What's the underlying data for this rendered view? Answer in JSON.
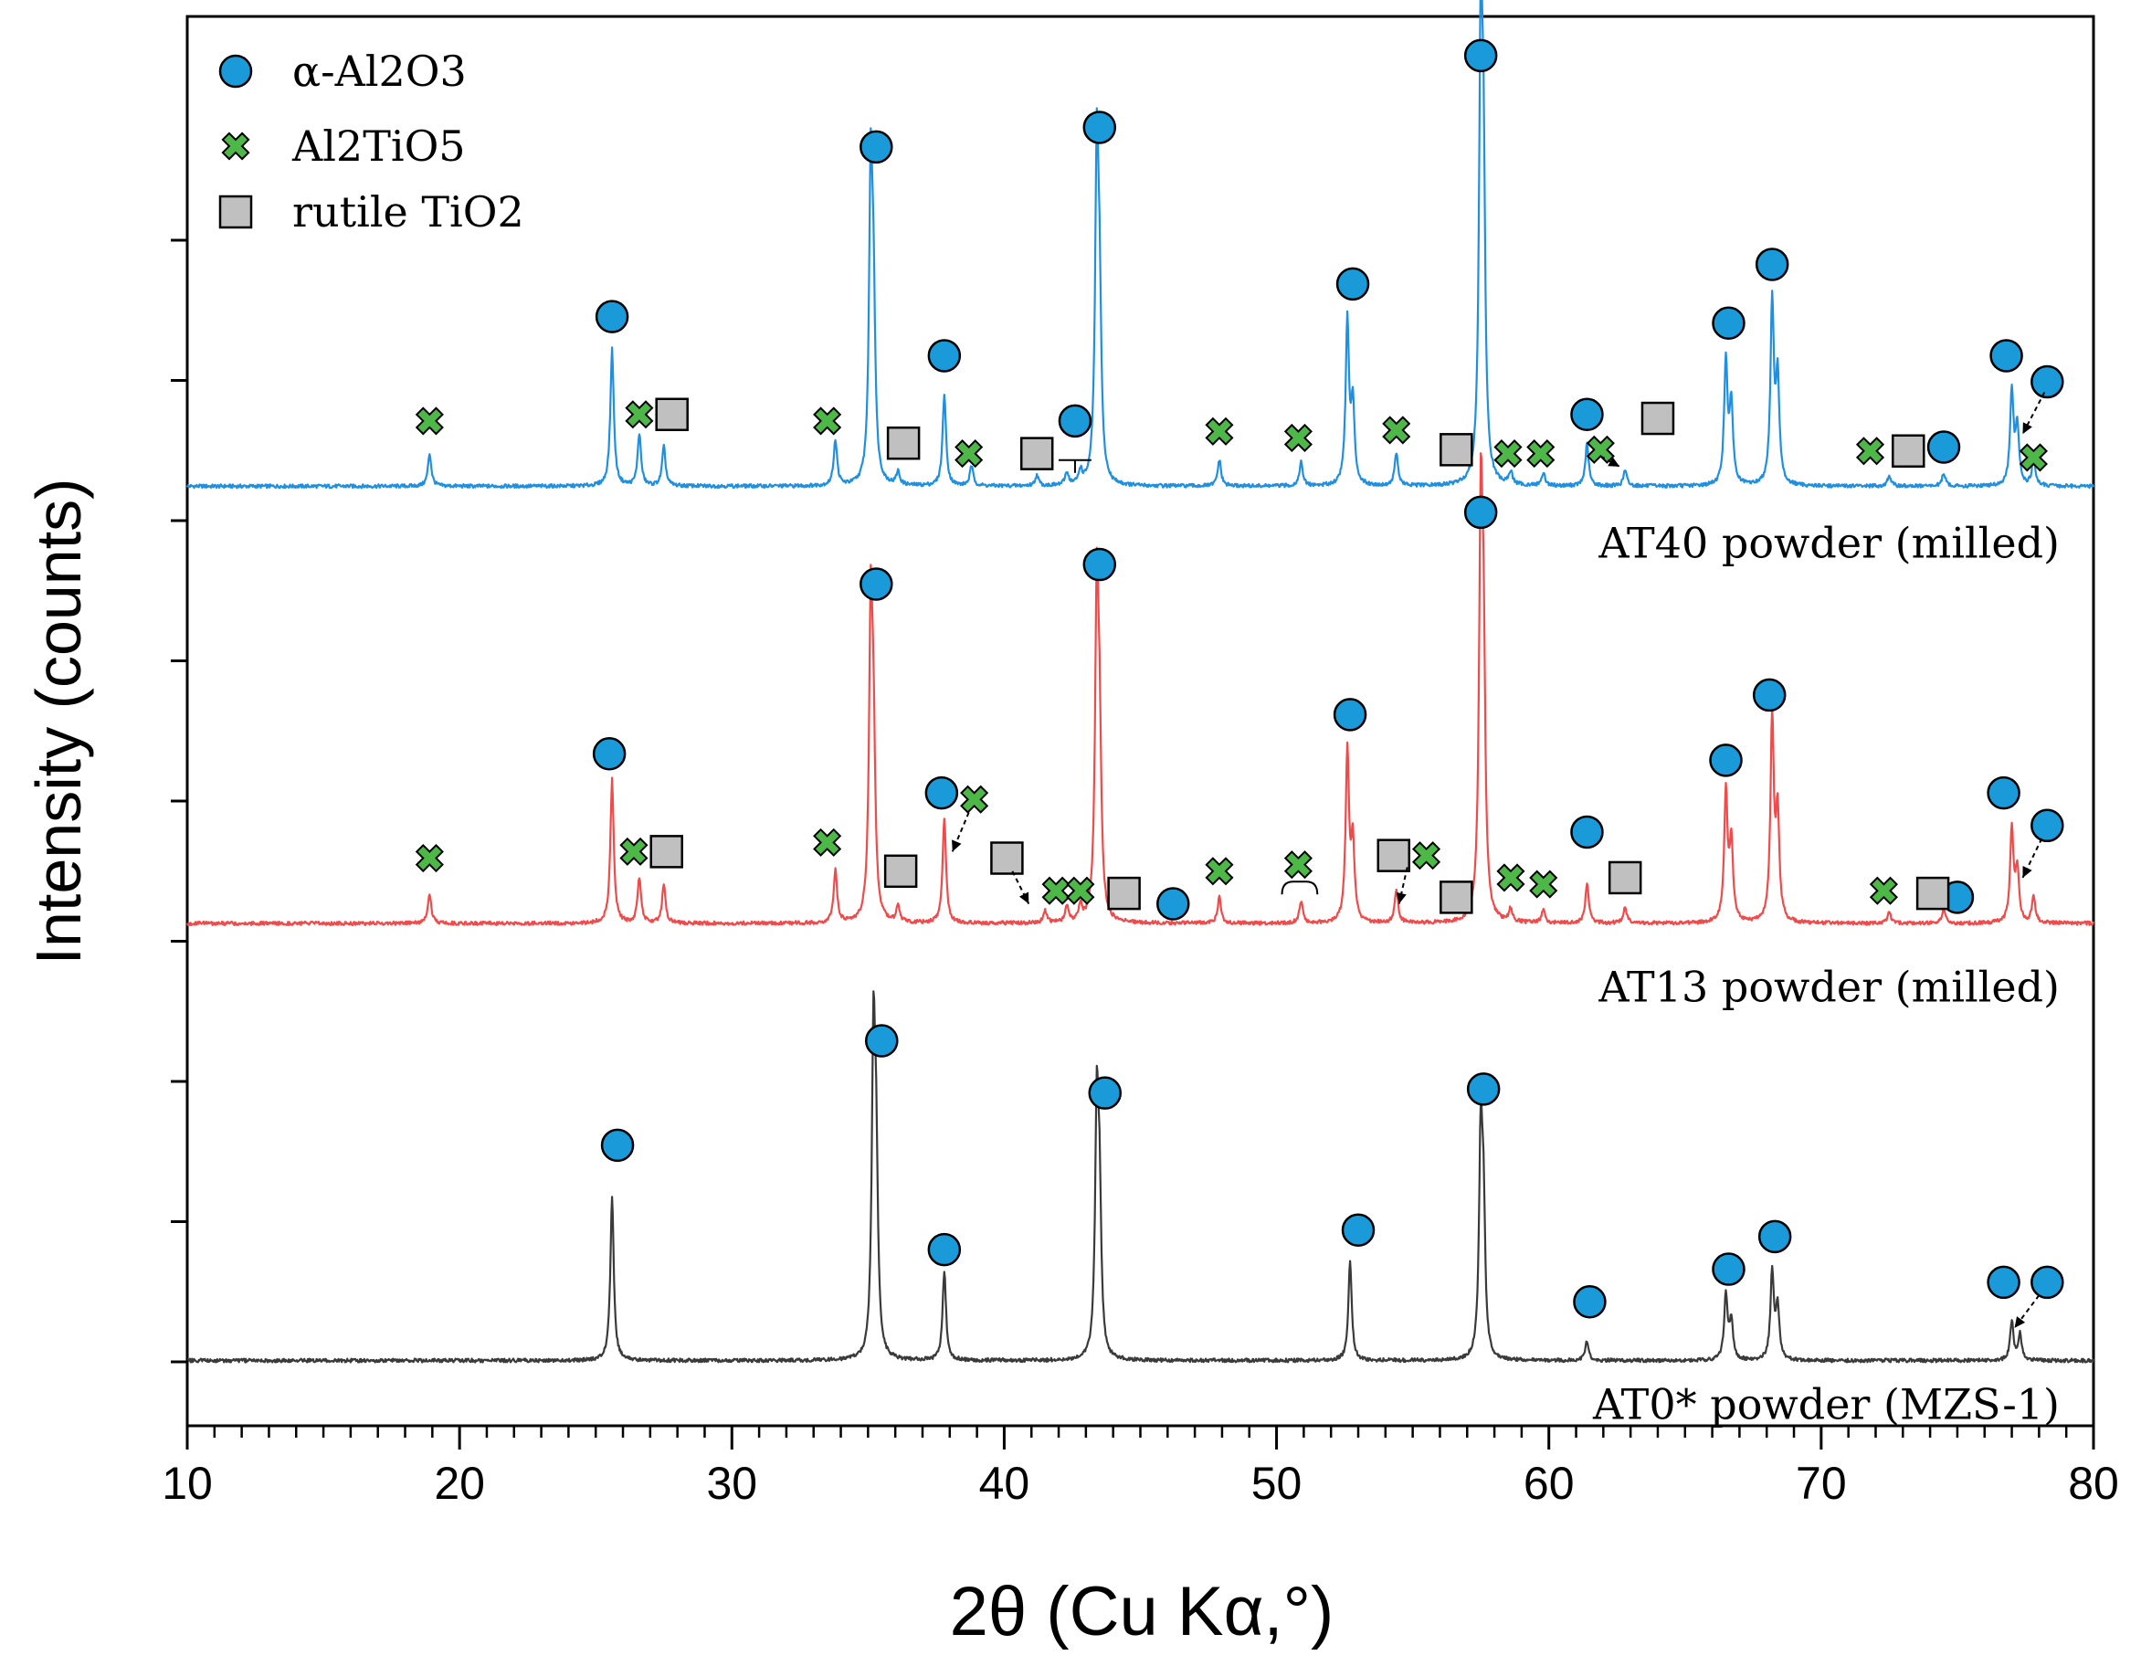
{
  "chart_data": {
    "type": "line",
    "title": "",
    "xlabel": "2θ (Cu Kα,°)",
    "ylabel": "Intensity (counts)",
    "xlim": [
      10,
      80
    ],
    "x_ticks": [
      10,
      20,
      30,
      40,
      50,
      60,
      70,
      80
    ],
    "x_ticks_labels": [
      "10",
      "20",
      "30",
      "40",
      "50",
      "60",
      "70",
      "80"
    ],
    "y_tick_labels_shown": false,
    "y_minor_ticks": 9,
    "grid": false,
    "legend": {
      "placement": "top-left",
      "entries": [
        {
          "id": "alumina",
          "label": "α-Al2O3",
          "marker": "circle",
          "color": "#1a9ad9"
        },
        {
          "id": "alti",
          "label": "Al2TiO5",
          "marker": "cross",
          "color": "#4db848"
        },
        {
          "id": "rutile",
          "label": "rutile TiO2",
          "marker": "square",
          "color": "#c0c0c0"
        }
      ]
    },
    "series": [
      {
        "name": "AT40 powder (milled)",
        "color": "#1f8fe0",
        "baseline_level": 6.0,
        "peaks": [
          [
            18.9,
            0.25
          ],
          [
            25.6,
            1.05
          ],
          [
            26.6,
            0.4
          ],
          [
            27.5,
            0.3
          ],
          [
            33.8,
            0.35
          ],
          [
            35.1,
            2.3
          ],
          [
            35.2,
            1.2
          ],
          [
            36.1,
            0.1
          ],
          [
            37.8,
            0.7
          ],
          [
            38.8,
            0.15
          ],
          [
            41.2,
            0.08
          ],
          [
            42.3,
            0.1
          ],
          [
            42.8,
            0.1
          ],
          [
            43.4,
            2.45
          ],
          [
            43.5,
            1.2
          ],
          [
            47.9,
            0.2
          ],
          [
            50.9,
            0.18
          ],
          [
            52.6,
            1.25
          ],
          [
            52.8,
            0.6
          ],
          [
            54.4,
            0.25
          ],
          [
            57.5,
            3.3
          ],
          [
            57.6,
            2.0
          ],
          [
            58.6,
            0.1
          ],
          [
            59.8,
            0.1
          ],
          [
            61.4,
            0.32
          ],
          [
            62.8,
            0.12
          ],
          [
            66.5,
            0.95
          ],
          [
            66.7,
            0.6
          ],
          [
            68.2,
            1.4
          ],
          [
            68.4,
            0.8
          ],
          [
            72.5,
            0.08
          ],
          [
            74.5,
            0.1
          ],
          [
            77.0,
            0.72
          ],
          [
            77.2,
            0.45
          ],
          [
            77.8,
            0.2
          ]
        ],
        "markers": [
          {
            "phase": "alumina",
            "x": 25.6,
            "level": 7.3
          },
          {
            "phase": "alumina",
            "x": 35.3,
            "level": 8.6
          },
          {
            "phase": "alumina",
            "x": 37.8,
            "level": 7.0
          },
          {
            "phase": "alumina",
            "x": 42.6,
            "level": 6.5
          },
          {
            "phase": "alumina",
            "x": 43.5,
            "level": 8.75
          },
          {
            "phase": "alumina",
            "x": 52.8,
            "level": 7.55
          },
          {
            "phase": "alumina",
            "x": 57.5,
            "level": 9.3
          },
          {
            "phase": "alumina",
            "x": 61.4,
            "level": 6.55
          },
          {
            "phase": "alumina",
            "x": 66.6,
            "level": 7.25
          },
          {
            "phase": "alumina",
            "x": 68.2,
            "level": 7.7
          },
          {
            "phase": "alumina",
            "x": 74.5,
            "level": 6.3
          },
          {
            "phase": "alumina",
            "x": 76.8,
            "level": 7.0
          },
          {
            "phase": "alumina",
            "x": 78.3,
            "level": 6.8
          },
          {
            "phase": "alti",
            "x": 18.9,
            "level": 6.5
          },
          {
            "phase": "alti",
            "x": 26.6,
            "level": 6.55
          },
          {
            "phase": "alti",
            "x": 33.5,
            "level": 6.5
          },
          {
            "phase": "alti",
            "x": 38.7,
            "level": 6.25
          },
          {
            "phase": "alti",
            "x": 47.9,
            "level": 6.42
          },
          {
            "phase": "alti",
            "x": 50.8,
            "level": 6.37
          },
          {
            "phase": "alti",
            "x": 54.4,
            "level": 6.43
          },
          {
            "phase": "alti",
            "x": 58.5,
            "level": 6.25
          },
          {
            "phase": "alti",
            "x": 59.7,
            "level": 6.25
          },
          {
            "phase": "alti",
            "x": 61.9,
            "level": 6.28
          },
          {
            "phase": "alti",
            "x": 71.8,
            "level": 6.27
          },
          {
            "phase": "alti",
            "x": 77.8,
            "level": 6.22
          },
          {
            "phase": "rutile",
            "x": 27.8,
            "level": 6.55
          },
          {
            "phase": "rutile",
            "x": 36.3,
            "level": 6.33
          },
          {
            "phase": "rutile",
            "x": 41.2,
            "level": 6.25
          },
          {
            "phase": "rutile",
            "x": 56.6,
            "level": 6.28
          },
          {
            "phase": "rutile",
            "x": 64.0,
            "level": 6.52
          },
          {
            "phase": "rutile",
            "x": 73.2,
            "level": 6.27
          }
        ]
      },
      {
        "name": "AT13 powder (milled)",
        "color": "#f04a4a",
        "baseline_level": 2.65,
        "peaks": [
          [
            18.9,
            0.22
          ],
          [
            25.6,
            1.1
          ],
          [
            26.6,
            0.35
          ],
          [
            27.5,
            0.3
          ],
          [
            33.8,
            0.4
          ],
          [
            35.1,
            2.3
          ],
          [
            35.2,
            1.2
          ],
          [
            36.1,
            0.12
          ],
          [
            37.8,
            0.8
          ],
          [
            41.5,
            0.1
          ],
          [
            42.3,
            0.12
          ],
          [
            42.8,
            0.12
          ],
          [
            43.4,
            2.45
          ],
          [
            43.5,
            1.2
          ],
          [
            47.9,
            0.2
          ],
          [
            50.9,
            0.17
          ],
          [
            52.6,
            1.3
          ],
          [
            52.8,
            0.6
          ],
          [
            54.4,
            0.25
          ],
          [
            57.5,
            2.95
          ],
          [
            57.6,
            1.8
          ],
          [
            58.6,
            0.1
          ],
          [
            59.8,
            0.1
          ],
          [
            61.4,
            0.3
          ],
          [
            62.8,
            0.12
          ],
          [
            66.5,
            1.0
          ],
          [
            66.7,
            0.6
          ],
          [
            68.2,
            1.55
          ],
          [
            68.4,
            0.8
          ],
          [
            72.5,
            0.08
          ],
          [
            74.5,
            0.1
          ],
          [
            77.0,
            0.72
          ],
          [
            77.2,
            0.4
          ],
          [
            77.8,
            0.2
          ]
        ],
        "markers": [
          {
            "phase": "alumina",
            "x": 25.5,
            "level": 3.95
          },
          {
            "phase": "alumina",
            "x": 35.3,
            "level": 5.25
          },
          {
            "phase": "alumina",
            "x": 37.7,
            "level": 3.65
          },
          {
            "phase": "alumina",
            "x": 46.2,
            "level": 2.8
          },
          {
            "phase": "alumina",
            "x": 43.5,
            "level": 5.4
          },
          {
            "phase": "alumina",
            "x": 52.7,
            "level": 4.25
          },
          {
            "phase": "alumina",
            "x": 57.5,
            "level": 5.8
          },
          {
            "phase": "alumina",
            "x": 61.4,
            "level": 3.35
          },
          {
            "phase": "alumina",
            "x": 66.5,
            "level": 3.9
          },
          {
            "phase": "alumina",
            "x": 68.1,
            "level": 4.4
          },
          {
            "phase": "alumina",
            "x": 75.0,
            "level": 2.85
          },
          {
            "phase": "alumina",
            "x": 76.7,
            "level": 3.65
          },
          {
            "phase": "alumina",
            "x": 78.3,
            "level": 3.4
          },
          {
            "phase": "alti",
            "x": 18.9,
            "level": 3.15
          },
          {
            "phase": "alti",
            "x": 26.4,
            "level": 3.2
          },
          {
            "phase": "alti",
            "x": 33.5,
            "level": 3.27
          },
          {
            "phase": "alti",
            "x": 38.9,
            "level": 3.6
          },
          {
            "phase": "alti",
            "x": 41.9,
            "level": 2.9
          },
          {
            "phase": "alti",
            "x": 42.8,
            "level": 2.9
          },
          {
            "phase": "alti",
            "x": 47.9,
            "level": 3.05
          },
          {
            "phase": "alti",
            "x": 50.8,
            "level": 3.1
          },
          {
            "phase": "alti",
            "x": 55.5,
            "level": 3.17
          },
          {
            "phase": "alti",
            "x": 58.6,
            "level": 3.0
          },
          {
            "phase": "alti",
            "x": 59.8,
            "level": 2.95
          },
          {
            "phase": "alti",
            "x": 72.3,
            "level": 2.9
          },
          {
            "phase": "rutile",
            "x": 27.6,
            "level": 3.2
          },
          {
            "phase": "rutile",
            "x": 36.2,
            "level": 3.05
          },
          {
            "phase": "rutile",
            "x": 40.1,
            "level": 3.15
          },
          {
            "phase": "rutile",
            "x": 44.4,
            "level": 2.88
          },
          {
            "phase": "rutile",
            "x": 54.3,
            "level": 3.17
          },
          {
            "phase": "rutile",
            "x": 56.6,
            "level": 2.85
          },
          {
            "phase": "rutile",
            "x": 62.8,
            "level": 3.0
          },
          {
            "phase": "rutile",
            "x": 74.1,
            "level": 2.88
          }
        ]
      },
      {
        "name": "AT0* powder (MZS-1)",
        "color": "#3a3a3a",
        "baseline_level": -0.7,
        "peaks": [
          [
            25.6,
            1.25
          ],
          [
            35.2,
            2.35
          ],
          [
            35.3,
            1.3
          ],
          [
            37.8,
            0.68
          ],
          [
            43.4,
            1.85
          ],
          [
            43.5,
            1.1
          ],
          [
            52.7,
            0.75
          ],
          [
            57.5,
            1.65
          ],
          [
            57.6,
            1.0
          ],
          [
            61.4,
            0.15
          ],
          [
            66.5,
            0.5
          ],
          [
            66.7,
            0.3
          ],
          [
            68.2,
            0.68
          ],
          [
            68.4,
            0.4
          ],
          [
            77.0,
            0.3
          ],
          [
            77.3,
            0.2
          ]
        ],
        "markers": [
          {
            "phase": "alumina",
            "x": 25.8,
            "level": 0.95
          },
          {
            "phase": "alumina",
            "x": 35.5,
            "level": 1.75
          },
          {
            "phase": "alumina",
            "x": 37.8,
            "level": 0.15
          },
          {
            "phase": "alumina",
            "x": 43.7,
            "level": 1.35
          },
          {
            "phase": "alumina",
            "x": 53.0,
            "level": 0.3
          },
          {
            "phase": "alumina",
            "x": 57.6,
            "level": 1.38
          },
          {
            "phase": "alumina",
            "x": 61.5,
            "level": -0.25
          },
          {
            "phase": "alumina",
            "x": 66.6,
            "level": 0.0
          },
          {
            "phase": "alumina",
            "x": 68.3,
            "level": 0.25
          },
          {
            "phase": "alumina",
            "x": 76.7,
            "level": -0.1
          },
          {
            "phase": "alumina",
            "x": 78.3,
            "level": -0.1
          }
        ]
      }
    ],
    "y_level_range": [
      -1.2,
      9.6
    ]
  }
}
